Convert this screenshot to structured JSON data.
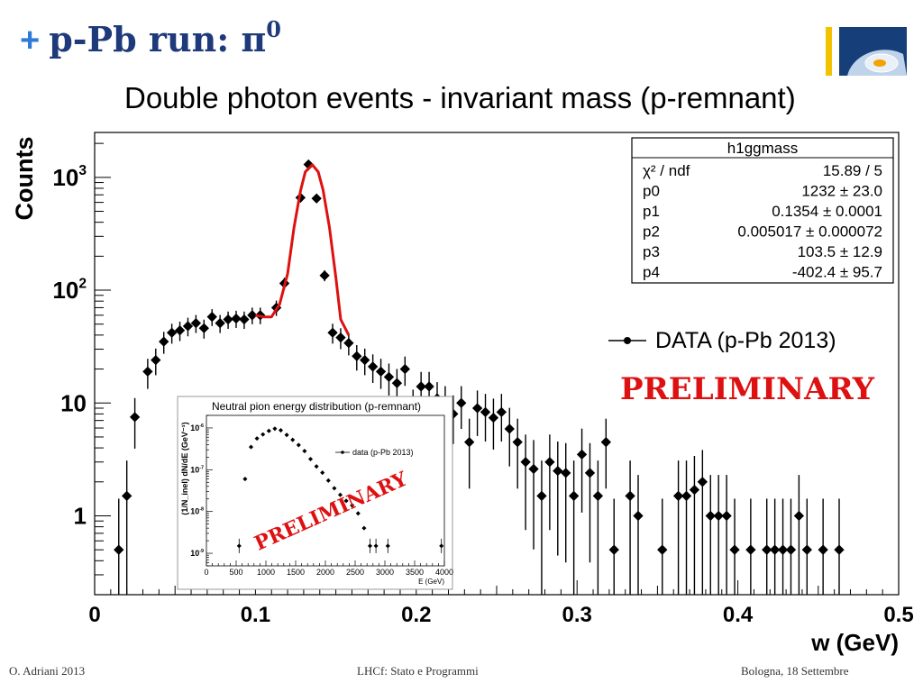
{
  "slide": {
    "title_text": "p-Pb run: ",
    "title_symbol": "π",
    "title_superscript": "0",
    "bullet": "+"
  },
  "footer": {
    "author": "O. Adriani 2013",
    "center": "LHCf: Stato e Programmi",
    "right": "Bologna, 18 Settembre"
  },
  "colors": {
    "title": "#1f3a7a",
    "bullet": "#2e7bd6",
    "fit": "#dd1111",
    "preliminary": "#dd1111",
    "logo_blue": "#163f7a",
    "logo_yellow": "#f2c200"
  },
  "chart_data": [
    {
      "type": "scatter",
      "title": "Double photon events - invariant mass (p-remnant)",
      "xlabel": "w (GeV)",
      "ylabel": "Counts",
      "xlim": [
        0,
        0.5
      ],
      "ylim": [
        0.2,
        2500
      ],
      "yscale": "log",
      "x_ticks": [
        "0",
        "0.1",
        "0.2",
        "0.3",
        "0.4",
        "0.5"
      ],
      "y_tick_labels": [
        {
          "value": 1,
          "base": "1",
          "exp": ""
        },
        {
          "value": 10,
          "base": "10",
          "exp": ""
        },
        {
          "value": 100,
          "base": "10",
          "exp": "2"
        },
        {
          "value": 1000,
          "base": "10",
          "exp": "3"
        }
      ],
      "legend": {
        "label": "DATA (p-Pb 2013)",
        "placement": "right"
      },
      "annotation": "PRELIMINARY",
      "stats_box": {
        "title": "h1ggmass",
        "rows": [
          {
            "name": "χ² / ndf",
            "value": "15.89 / 5"
          },
          {
            "name": "p0",
            "value": "1232 ± 23.0"
          },
          {
            "name": "p1",
            "value": "0.1354 ± 0.0001"
          },
          {
            "name": "p2",
            "value": "0.005017 ± 0.000072"
          },
          {
            "name": "p3",
            "value": "103.5 ± 12.9"
          },
          {
            "name": "p4",
            "value": "-402.4 ± 95.7"
          }
        ]
      },
      "series": [
        {
          "name": "DATA (p-Pb 2013)",
          "points": [
            [
              0.015,
              0.5
            ],
            [
              0.02,
              1.5
            ],
            [
              0.025,
              7.5
            ],
            [
              0.033,
              19
            ],
            [
              0.038,
              24
            ],
            [
              0.043,
              35
            ],
            [
              0.048,
              42
            ],
            [
              0.053,
              44
            ],
            [
              0.058,
              48
            ],
            [
              0.063,
              51
            ],
            [
              0.068,
              46
            ],
            [
              0.073,
              58
            ],
            [
              0.078,
              51
            ],
            [
              0.083,
              55
            ],
            [
              0.088,
              56
            ],
            [
              0.093,
              55
            ],
            [
              0.098,
              60
            ],
            [
              0.103,
              60
            ],
            [
              0.113,
              70
            ],
            [
              0.118,
              115
            ],
            [
              0.128,
              660
            ],
            [
              0.133,
              1300
            ],
            [
              0.138,
              650
            ],
            [
              0.143,
              135
            ],
            [
              0.148,
              42
            ],
            [
              0.153,
              38
            ],
            [
              0.158,
              34
            ],
            [
              0.163,
              26
            ],
            [
              0.168,
              24
            ],
            [
              0.173,
              21
            ],
            [
              0.178,
              19
            ],
            [
              0.183,
              17
            ],
            [
              0.188,
              15
            ],
            [
              0.193,
              20
            ],
            [
              0.198,
              9.2
            ],
            [
              0.203,
              14
            ],
            [
              0.208,
              14
            ],
            [
              0.213,
              11
            ],
            [
              0.218,
              10
            ],
            [
              0.223,
              8
            ],
            [
              0.228,
              10
            ],
            [
              0.233,
              4.5
            ],
            [
              0.238,
              9
            ],
            [
              0.243,
              8.3
            ],
            [
              0.248,
              7.4
            ],
            [
              0.253,
              8.3
            ],
            [
              0.258,
              5.9
            ],
            [
              0.263,
              4.5
            ],
            [
              0.268,
              3
            ],
            [
              0.273,
              2.6
            ],
            [
              0.278,
              1.5
            ],
            [
              0.283,
              3
            ],
            [
              0.288,
              2.5
            ],
            [
              0.293,
              2.4
            ],
            [
              0.298,
              1.5
            ],
            [
              0.303,
              3.5
            ],
            [
              0.308,
              2.4
            ],
            [
              0.313,
              1.5
            ],
            [
              0.318,
              4.5
            ],
            [
              0.323,
              0.5
            ],
            [
              0.333,
              1.5
            ],
            [
              0.338,
              1
            ],
            [
              0.353,
              0.5
            ],
            [
              0.363,
              1.5
            ],
            [
              0.368,
              1.5
            ],
            [
              0.373,
              1.7
            ],
            [
              0.378,
              2
            ],
            [
              0.383,
              1
            ],
            [
              0.388,
              1
            ],
            [
              0.393,
              1
            ],
            [
              0.398,
              0.5
            ],
            [
              0.408,
              0.5
            ],
            [
              0.418,
              0.5
            ],
            [
              0.423,
              0.5
            ],
            [
              0.428,
              0.5
            ],
            [
              0.433,
              0.5
            ],
            [
              0.438,
              1
            ],
            [
              0.443,
              0.5
            ],
            [
              0.453,
              0.5
            ],
            [
              0.463,
              0.5
            ]
          ]
        },
        {
          "name": "",
          "fit": true,
          "points": [
            [
              0.1,
              60
            ],
            [
              0.105,
              58
            ],
            [
              0.11,
              58
            ],
            [
              0.115,
              75
            ],
            [
              0.12,
              140
            ],
            [
              0.124,
              360
            ],
            [
              0.128,
              760
            ],
            [
              0.131,
              1120
            ],
            [
              0.1354,
              1290
            ],
            [
              0.139,
              1120
            ],
            [
              0.142,
              780
            ],
            [
              0.146,
              360
            ],
            [
              0.15,
              130
            ],
            [
              0.153,
              55
            ],
            [
              0.158,
              40
            ]
          ]
        }
      ]
    },
    {
      "type": "scatter",
      "title": "Neutral pion energy distribution (p-remnant)",
      "xlabel": "E (GeV)",
      "ylabel": "(1/N_inel) dN/dE (GeV⁻¹)",
      "xlim": [
        0,
        4000
      ],
      "ylim": [
        5e-10,
        2e-06
      ],
      "yscale": "log",
      "x_ticks": [
        "0",
        "500",
        "1000",
        "1500",
        "2000",
        "2500",
        "3000",
        "3500",
        "4000"
      ],
      "y_tick_labels": [
        {
          "value": 1e-06,
          "base": "10",
          "exp": "-6"
        },
        {
          "value": 1e-07,
          "base": "10",
          "exp": "-7"
        },
        {
          "value": 1e-08,
          "base": "10",
          "exp": "-8"
        },
        {
          "value": 1e-09,
          "base": "10",
          "exp": "-9"
        }
      ],
      "legend": {
        "label": "data (p-Pb 2013)",
        "placement": "top-right"
      },
      "annotation": "PRELIMINARY",
      "series": [
        {
          "name": "data (p-Pb 2013)",
          "points": [
            [
              550,
              1.5e-09
            ],
            [
              650,
              6e-08
            ],
            [
              750,
              3.5e-07
            ],
            [
              850,
              5.6e-07
            ],
            [
              950,
              7e-07
            ],
            [
              1050,
              8.5e-07
            ],
            [
              1150,
              9.6e-07
            ],
            [
              1250,
              8.8e-07
            ],
            [
              1350,
              6.8e-07
            ],
            [
              1450,
              5.2e-07
            ],
            [
              1550,
              3.9e-07
            ],
            [
              1650,
              2.8e-07
            ],
            [
              1750,
              1.8e-07
            ],
            [
              1850,
              1.2e-07
            ],
            [
              1950,
              8.5e-08
            ],
            [
              2050,
              5.5e-08
            ],
            [
              2150,
              3.6e-08
            ],
            [
              2250,
              2.5e-08
            ],
            [
              2350,
              1.8e-08
            ],
            [
              2450,
              1.4e-08
            ],
            [
              2550,
              9e-09
            ],
            [
              2650,
              4e-09
            ],
            [
              2750,
              1.5e-09
            ],
            [
              2850,
              1.5e-09
            ],
            [
              3050,
              1.5e-09
            ],
            [
              3950,
              1.5e-09
            ]
          ]
        }
      ]
    }
  ]
}
